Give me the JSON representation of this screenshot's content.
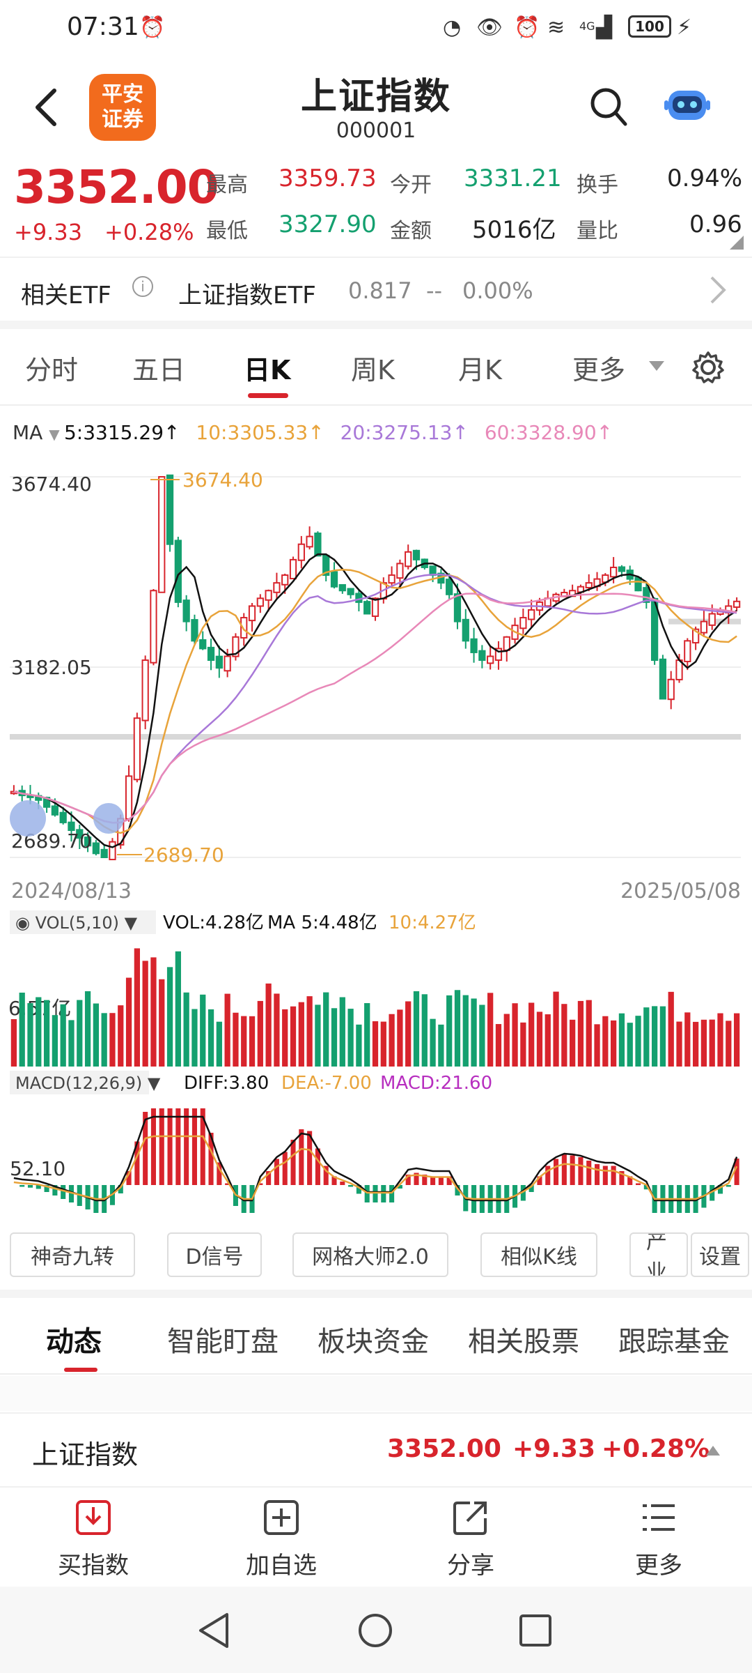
{
  "status_bar": {
    "time": "07:31",
    "battery": "100",
    "signal": "4G"
  },
  "header": {
    "logo_line1": "平安",
    "logo_line2": "证券",
    "title": "上证指数",
    "code": "000001"
  },
  "quote": {
    "price": "3352.00",
    "change": "+9.33",
    "change_pct": "+0.28%",
    "high_label": "最高",
    "high": "3359.73",
    "low_label": "最低",
    "low": "3327.90",
    "open_label": "今开",
    "open": "3331.21",
    "amount_label": "金额",
    "amount": "5016亿",
    "turnover_label": "换手",
    "turnover": "0.94%",
    "vol_ratio_label": "量比",
    "vol_ratio": "0.96"
  },
  "etf": {
    "label": "相关ETF",
    "name": "上证指数ETF",
    "price": "0.817",
    "change": "--",
    "change_pct": "0.00%"
  },
  "chart_tabs": [
    {
      "label": "分时"
    },
    {
      "label": "五日"
    },
    {
      "label": "日K"
    },
    {
      "label": "周K"
    },
    {
      "label": "月K"
    },
    {
      "label": "更多"
    }
  ],
  "ma_legend": {
    "label": "MA",
    "ma5": "5:3315.29↑",
    "ma10": "10:3305.33↑",
    "ma20": "20:3275.13↑",
    "ma60": "60:3328.90↑"
  },
  "colors": {
    "up": "#d8242c",
    "down": "#14a06f",
    "ma5": "#111111",
    "ma10": "#e8a33a",
    "ma20": "#a878d8",
    "ma60": "#e888b8",
    "accent": "#d8242c"
  },
  "chart_data": [
    {
      "type": "candlestick",
      "y_labels": [
        "3674.40",
        "3182.05",
        "2689.70"
      ],
      "x_labels": [
        "2024/08/13",
        "2025/05/08"
      ],
      "annotations": [
        "3674.40",
        "2689.70"
      ],
      "ylim": [
        2689.7,
        3674.4
      ],
      "close_trend": [
        2860,
        2850,
        2845,
        2838,
        2820,
        2800,
        2780,
        2760,
        2740,
        2720,
        2700,
        2689.7,
        2730,
        2790,
        2900,
        3050,
        3200,
        3380,
        3674.4,
        3500,
        3350,
        3300,
        3250,
        3230,
        3200,
        3180,
        3210,
        3260,
        3310,
        3340,
        3360,
        3380,
        3400,
        3420,
        3460,
        3500,
        3520,
        3470,
        3420,
        3390,
        3380,
        3370,
        3350,
        3320,
        3360,
        3400,
        3420,
        3450,
        3480,
        3460,
        3440,
        3420,
        3400,
        3370,
        3300,
        3250,
        3220,
        3200,
        3210,
        3230,
        3260,
        3290,
        3310,
        3330,
        3350,
        3360,
        3370,
        3375,
        3380,
        3390,
        3400,
        3410,
        3420,
        3440,
        3430,
        3410,
        3380,
        3350,
        3200,
        3100,
        3150,
        3200,
        3250,
        3280,
        3300,
        3320,
        3330,
        3340,
        3352
      ],
      "ma_lines": {
        "ma5": "5:3315.29",
        "ma10": "10:3305.33",
        "ma20": "20:3275.13",
        "ma60": "60:3328.90"
      }
    },
    {
      "type": "bar",
      "title": "VOL(5,10)",
      "legend": [
        "VOL:4.28亿",
        "MA 5:4.48亿",
        "10:4.27亿"
      ],
      "y_label": "6.57亿"
    },
    {
      "type": "bar",
      "title": "MACD(12,26,9)",
      "legend": [
        "DIFF:3.80",
        "DEA:-7.00",
        "MACD:21.60"
      ],
      "y_label": "52.10"
    }
  ],
  "tools": [
    {
      "label": "神奇九转"
    },
    {
      "label": "D信号"
    },
    {
      "label": "网格大师2.0"
    },
    {
      "label": "相似K线"
    },
    {
      "label": "产业"
    },
    {
      "label": "设置"
    }
  ],
  "info_tabs": [
    {
      "label": "动态"
    },
    {
      "label": "智能盯盘"
    },
    {
      "label": "板块资金"
    },
    {
      "label": "相关股票"
    },
    {
      "label": "跟踪基金"
    }
  ],
  "index_row": {
    "name": "上证指数",
    "price": "3352.00",
    "change": "+9.33",
    "change_pct": "+0.28%"
  },
  "bottom_nav": [
    {
      "label": "买指数",
      "icon": "download-icon"
    },
    {
      "label": "加自选",
      "icon": "add-icon"
    },
    {
      "label": "分享",
      "icon": "share-icon"
    },
    {
      "label": "更多",
      "icon": "menu-icon"
    }
  ]
}
